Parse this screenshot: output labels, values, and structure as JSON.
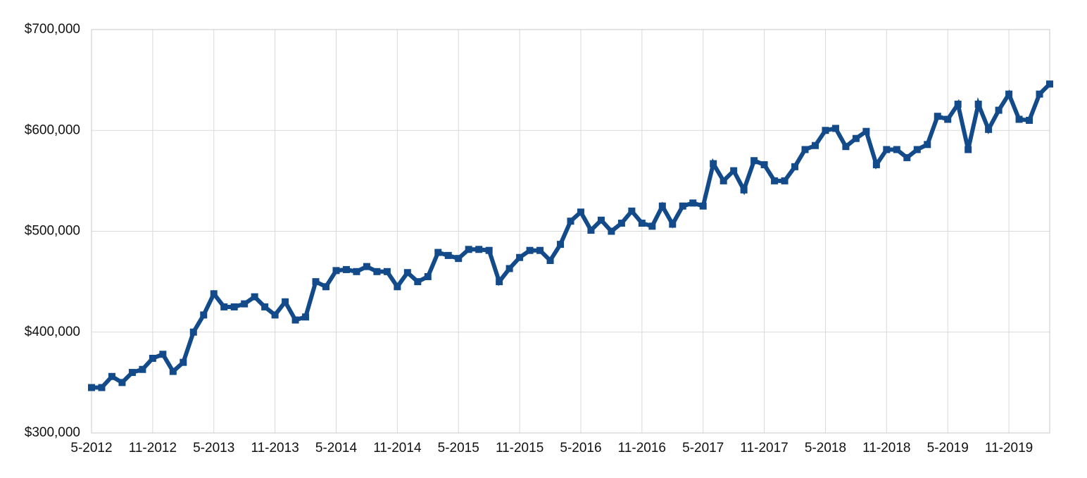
{
  "chart_data": {
    "type": "line",
    "categories": [
      "5-2012",
      null,
      null,
      null,
      null,
      null,
      "11-2012",
      null,
      null,
      null,
      null,
      null,
      "5-2013",
      null,
      null,
      null,
      null,
      null,
      "11-2013",
      null,
      null,
      null,
      null,
      null,
      "5-2014",
      null,
      null,
      null,
      null,
      null,
      "11-2014",
      null,
      null,
      null,
      null,
      null,
      "5-2015",
      null,
      null,
      null,
      null,
      null,
      "11-2015",
      null,
      null,
      null,
      null,
      null,
      "5-2016",
      null,
      null,
      null,
      null,
      null,
      "11-2016",
      null,
      null,
      null,
      null,
      null,
      "5-2017",
      null,
      null,
      null,
      null,
      null,
      "11-2017",
      null,
      null,
      null,
      null,
      null,
      "5-2018",
      null,
      null,
      null,
      null,
      null,
      "11-2018",
      null,
      null,
      null,
      null,
      null,
      "5-2019",
      null,
      null,
      null,
      null,
      null,
      "11-2019",
      null,
      null,
      null,
      null
    ],
    "series": [
      {
        "color": "#124a8a",
        "values": [
          345000,
          345000,
          356000,
          350000,
          360000,
          363000,
          374000,
          378000,
          361000,
          370000,
          400000,
          417000,
          438000,
          425000,
          425000,
          428000,
          435000,
          425000,
          417000,
          430000,
          412000,
          415000,
          450000,
          445000,
          461000,
          462000,
          460000,
          465000,
          460000,
          460000,
          445000,
          459000,
          450000,
          455000,
          479000,
          476000,
          473000,
          482000,
          482000,
          481000,
          450000,
          463000,
          474000,
          481000,
          481000,
          471000,
          487000,
          510000,
          519000,
          501000,
          511000,
          500000,
          508000,
          520000,
          508000,
          505000,
          525000,
          507000,
          525000,
          528000,
          525000,
          567000,
          550000,
          560000,
          541000,
          570000,
          566000,
          550000,
          550000,
          564000,
          581000,
          585000,
          600000,
          602000,
          584000,
          592000,
          599000,
          566000,
          581000,
          581000,
          573000,
          581000,
          586000,
          614000,
          611000,
          626000,
          581000,
          626000,
          601000,
          620000,
          636000,
          611000,
          610000,
          636000,
          646000
        ]
      }
    ],
    "ylim": [
      300000,
      700000
    ],
    "yticks": [
      {
        "value": 300000,
        "label": "$300,000"
      },
      {
        "value": 400000,
        "label": "$400,000"
      },
      {
        "value": 500000,
        "label": "$500,000"
      },
      {
        "value": 600000,
        "label": "$600,000"
      },
      {
        "value": 700000,
        "label": "$700,000"
      }
    ],
    "grid": true
  }
}
